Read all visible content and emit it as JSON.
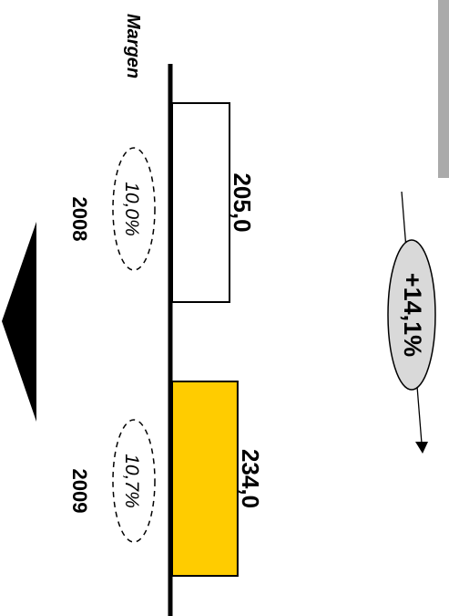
{
  "chart_data": {
    "type": "bar",
    "orientation": "horizontal",
    "categories": [
      "2008",
      "2009"
    ],
    "values": [
      205.0,
      234.0
    ],
    "value_labels": [
      "205,0",
      "234,0"
    ],
    "margin_label": "Margen",
    "margins": [
      "10,0%",
      "10,7%"
    ],
    "change_label": "+14,1%",
    "colors": {
      "bar_2008": "#ffffff",
      "bar_2009": "#ffcc00",
      "axis": "#000000",
      "change_badge": "#d9d9d9",
      "side_strip": "#aaaaaa"
    },
    "grid": false,
    "legend": "none"
  }
}
